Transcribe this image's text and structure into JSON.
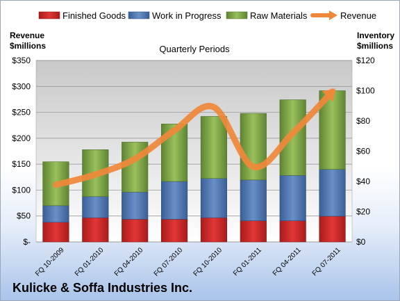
{
  "company_name": "Kulicke & Soffa Industries Inc.",
  "colors": {
    "finished": "#d42a2a",
    "wip": "#4f79b5",
    "raw": "#7fa64a",
    "revenue": "#f0883a",
    "plot_top": "#c8c8c8",
    "plot_bottom": "#ffffff"
  },
  "chart_data": {
    "type": "bar",
    "title": "Quarterly Periods",
    "left_axis_title": [
      "Revenue",
      "$millions"
    ],
    "right_axis_title": [
      "Inventory",
      "$millions"
    ],
    "categories": [
      "FQ 10-2009",
      "FQ 01-2010",
      "FQ 04-2010",
      "FQ 07-2010",
      "FQ 10-2010",
      "FQ 01-2011",
      "FQ 04-2011",
      "FQ 07-2011"
    ],
    "stacked": true,
    "series": [
      {
        "name": "Finished Goods",
        "axis": "right",
        "values": [
          13,
          16,
          15,
          15,
          16,
          14,
          14,
          17
        ]
      },
      {
        "name": "Work in Progress",
        "axis": "right",
        "values": [
          11,
          14,
          18,
          25,
          26,
          27,
          30,
          31
        ]
      },
      {
        "name": "Raw Materials",
        "axis": "right",
        "values": [
          29,
          31,
          33,
          38,
          41,
          44,
          50,
          52
        ]
      }
    ],
    "line_series": {
      "name": "Revenue",
      "axis": "left",
      "values": [
        110,
        130,
        160,
        215,
        260,
        145,
        210,
        290
      ]
    },
    "left_axis": {
      "min": 0,
      "max": 350,
      "step": 50,
      "tick_labels": [
        "$-",
        "$50",
        "$100",
        "$150",
        "$200",
        "$250",
        "$300",
        "$350"
      ]
    },
    "right_axis": {
      "min": 0,
      "max": 120,
      "step": 20,
      "tick_labels": [
        "$0",
        "$20",
        "$40",
        "$60",
        "$80",
        "$100",
        "$120"
      ]
    },
    "legend_position": "top",
    "grid": true
  }
}
